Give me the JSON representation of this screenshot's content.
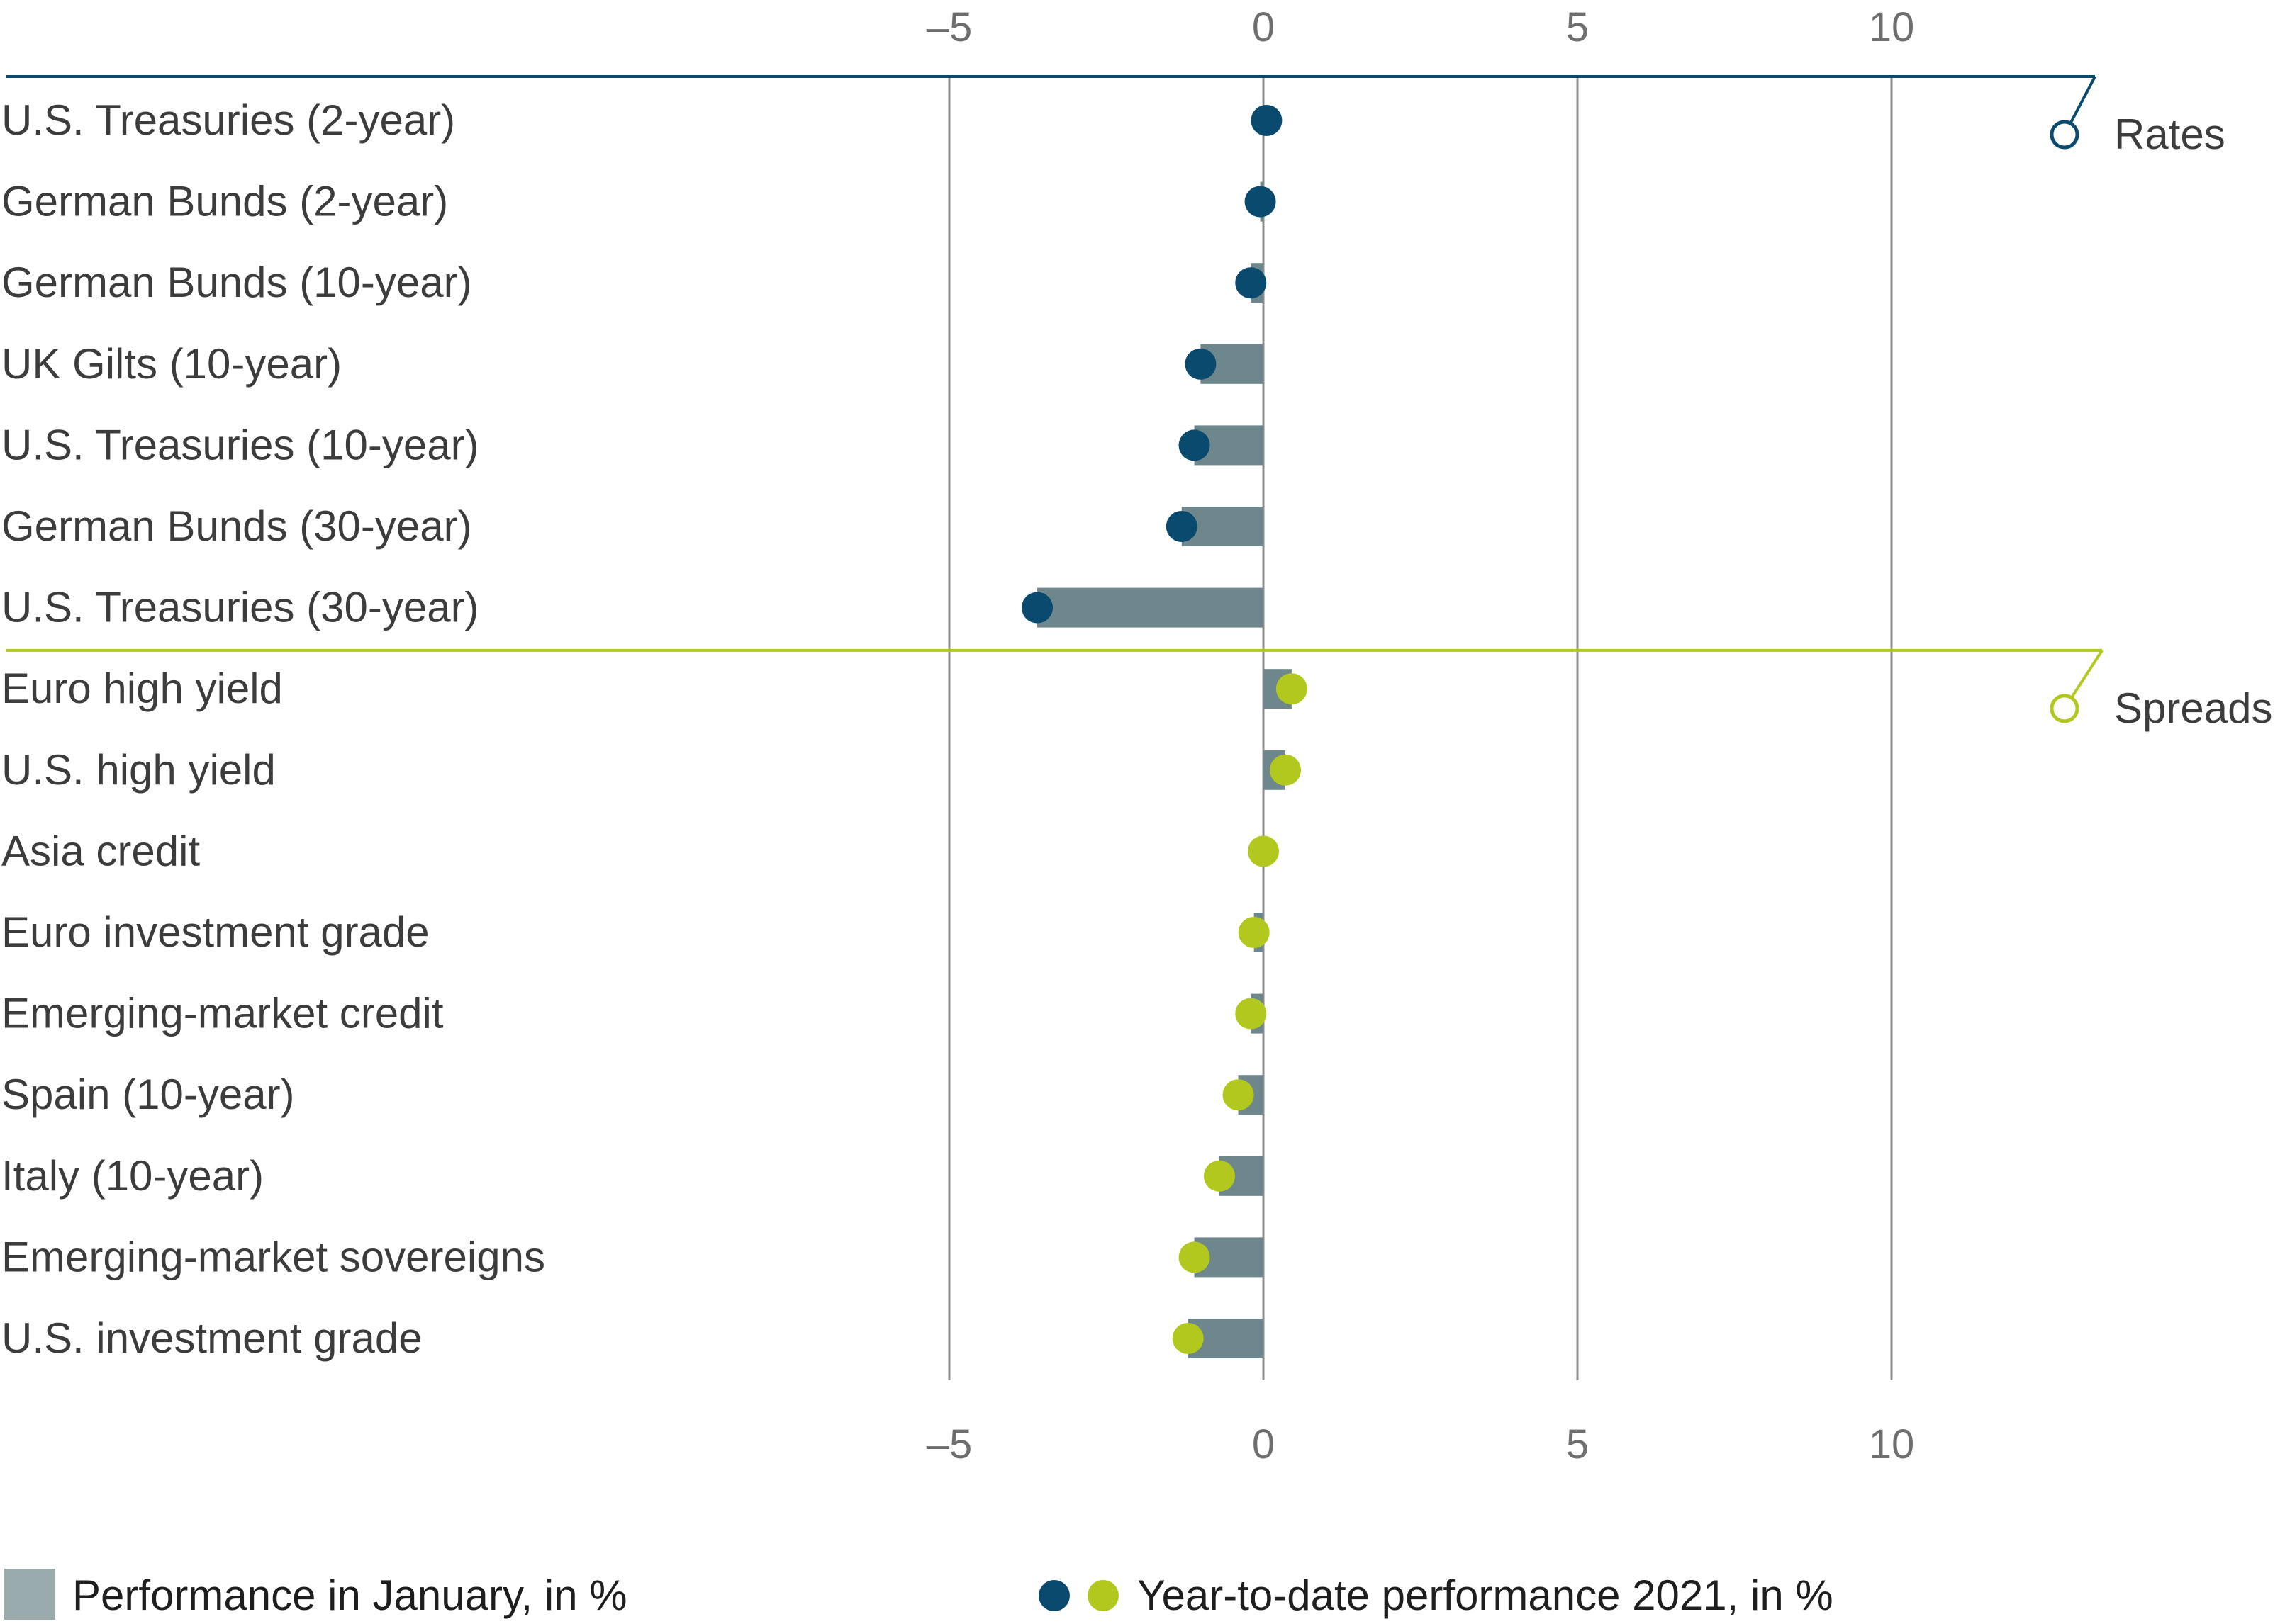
{
  "chart_data": {
    "type": "bar",
    "title": "",
    "xlabel": "",
    "ylabel": "",
    "xlim": [
      -10,
      13.2
    ],
    "x_ticks": [
      -5,
      0,
      5,
      10
    ],
    "x_tick_labels": [
      "–5",
      "0",
      "5",
      "10"
    ],
    "grid": true,
    "orientation": "horizontal",
    "groups": [
      {
        "name": "Rates",
        "color": "#0a4a6e",
        "categories": [
          "U.S. Treasuries (2-year)",
          "German Bunds (2-year)",
          "German Bunds (10-year)",
          "UK Gilts (10-year)",
          "U.S. Treasuries (10-year)",
          "German Bunds (30-year)",
          "U.S. Treasuries (30-year)"
        ],
        "january": [
          0.0,
          -0.05,
          -0.2,
          -1.0,
          -1.1,
          -1.3,
          -3.6
        ],
        "ytd": [
          0.05,
          -0.05,
          -0.2,
          -1.0,
          -1.1,
          -1.3,
          -3.6
        ]
      },
      {
        "name": "Spreads",
        "color": "#b3c81e",
        "categories": [
          "Euro high yield",
          "U.S. high yield",
          "Asia credit",
          "Euro investment grade",
          "Emerging-market credit",
          "Spain (10-year)",
          "Italy (10-year)",
          "Emerging-market sovereigns",
          "U.S. investment grade"
        ],
        "january": [
          0.45,
          0.35,
          0.0,
          -0.15,
          -0.2,
          -0.4,
          -0.7,
          -1.1,
          -1.2
        ],
        "ytd": [
          0.45,
          0.35,
          0.0,
          -0.15,
          -0.2,
          -0.4,
          -0.7,
          -1.1,
          -1.2
        ]
      }
    ],
    "series": [
      {
        "name": "Performance in January, in %",
        "color": "#6e878c"
      },
      {
        "name": "Year-to-date performance 2021, in %",
        "colors": [
          "#0a4a6e",
          "#b3c81e"
        ]
      }
    ],
    "legend_position": "bottom"
  }
}
